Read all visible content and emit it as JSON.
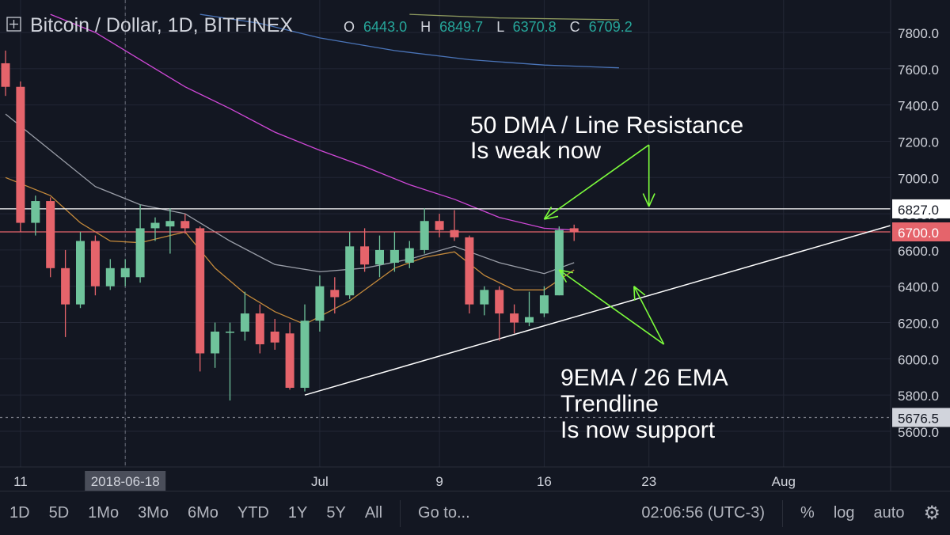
{
  "header": {
    "title": "Bitcoin / Dollar, 1D, BITFINEX",
    "ohlc": [
      {
        "label": "O",
        "value": "6443.0"
      },
      {
        "label": "H",
        "value": "6849.7"
      },
      {
        "label": "L",
        "value": "6370.8"
      },
      {
        "label": "C",
        "value": "6709.2"
      }
    ]
  },
  "annotations": {
    "resistance_line1": "50 DMA / Line Resistance",
    "resistance_line2": "Is weak now",
    "support_line1": "9EMA / 26 EMA",
    "support_line2": "Trendline",
    "support_line3": "Is now support"
  },
  "price_tags": {
    "horizontal_line": "6827.0",
    "last_price": "6700.0",
    "low_line": "5676.5"
  },
  "toolbar": {
    "ranges": [
      "1D",
      "5D",
      "1Mo",
      "3Mo",
      "6Mo",
      "YTD",
      "1Y",
      "5Y",
      "All"
    ],
    "goto": "Go to...",
    "time": "02:06:56 (UTC-3)",
    "percent": "%",
    "log": "log",
    "auto": "auto"
  },
  "colors": {
    "up": "#6fc39b",
    "down": "#e5646b",
    "ema_fast": "#c58a3b",
    "ma_white": "#9a9ea8",
    "ma_50": "#d048d8",
    "annotation_arrows": "#7cfc3c"
  },
  "chart_data": {
    "type": "candlestick",
    "y_axis": {
      "range": [
        5450,
        7900
      ],
      "ticks": [
        "7800.0",
        "7600.0",
        "7400.0",
        "7200.0",
        "7000.0",
        "6800.0",
        "6600.0",
        "6400.0",
        "6200.0",
        "6000.0",
        "5800.0",
        "5600.0"
      ]
    },
    "x_axis": {
      "range": [
        "2018-06-10",
        "2018-08-12"
      ],
      "ticks": [
        {
          "date": "2018-06-11",
          "label": "11"
        },
        {
          "date": "2018-06-18",
          "label": "2018-06-18",
          "highlighted": true
        },
        {
          "date": "2018-07-01",
          "label": "Jul"
        },
        {
          "date": "2018-07-09",
          "label": "9"
        },
        {
          "date": "2018-07-16",
          "label": "16"
        },
        {
          "date": "2018-07-23",
          "label": "23"
        },
        {
          "date": "2018-08-01",
          "label": "Aug"
        }
      ]
    },
    "candles": [
      {
        "date": "2018-06-10",
        "open": 7630,
        "high": 7700,
        "low": 7450,
        "close": 7500
      },
      {
        "date": "2018-06-11",
        "open": 7500,
        "high": 7530,
        "low": 6700,
        "close": 6750
      },
      {
        "date": "2018-06-12",
        "open": 6750,
        "high": 6900,
        "low": 6680,
        "close": 6870
      },
      {
        "date": "2018-06-13",
        "open": 6870,
        "high": 6890,
        "low": 6450,
        "close": 6500
      },
      {
        "date": "2018-06-14",
        "open": 6500,
        "high": 6600,
        "low": 6120,
        "close": 6300
      },
      {
        "date": "2018-06-15",
        "open": 6300,
        "high": 6700,
        "low": 6280,
        "close": 6650
      },
      {
        "date": "2018-06-16",
        "open": 6650,
        "high": 6680,
        "low": 6350,
        "close": 6400
      },
      {
        "date": "2018-06-17",
        "open": 6400,
        "high": 6550,
        "low": 6380,
        "close": 6500
      },
      {
        "date": "2018-06-18",
        "open": 6450,
        "high": 6550,
        "low": 6400,
        "close": 6500
      },
      {
        "date": "2018-06-19",
        "open": 6450,
        "high": 6850,
        "low": 6420,
        "close": 6720
      },
      {
        "date": "2018-06-20",
        "open": 6720,
        "high": 6780,
        "low": 6650,
        "close": 6750
      },
      {
        "date": "2018-06-21",
        "open": 6730,
        "high": 6830,
        "low": 6580,
        "close": 6760
      },
      {
        "date": "2018-06-22",
        "open": 6760,
        "high": 6800,
        "low": 6690,
        "close": 6720
      },
      {
        "date": "2018-06-23",
        "open": 6720,
        "high": 6730,
        "low": 5930,
        "close": 6030
      },
      {
        "date": "2018-06-24",
        "open": 6030,
        "high": 6200,
        "low": 5950,
        "close": 6150
      },
      {
        "date": "2018-06-25",
        "open": 6150,
        "high": 6200,
        "low": 5770,
        "close": 6150
      },
      {
        "date": "2018-06-26",
        "open": 6150,
        "high": 6370,
        "low": 6100,
        "close": 6250
      },
      {
        "date": "2018-06-27",
        "open": 6250,
        "high": 6300,
        "low": 6030,
        "close": 6080
      },
      {
        "date": "2018-06-28",
        "open": 6150,
        "high": 6220,
        "low": 6050,
        "close": 6090
      },
      {
        "date": "2018-06-29",
        "open": 6140,
        "high": 6200,
        "low": 5830,
        "close": 5840
      },
      {
        "date": "2018-06-30",
        "open": 5840,
        "high": 6300,
        "low": 5820,
        "close": 6210
      },
      {
        "date": "2018-07-01",
        "open": 6210,
        "high": 6460,
        "low": 6150,
        "close": 6400
      },
      {
        "date": "2018-07-02",
        "open": 6380,
        "high": 6450,
        "low": 6250,
        "close": 6340
      },
      {
        "date": "2018-07-03",
        "open": 6350,
        "high": 6700,
        "low": 6330,
        "close": 6620
      },
      {
        "date": "2018-07-04",
        "open": 6620,
        "high": 6720,
        "low": 6480,
        "close": 6520
      },
      {
        "date": "2018-07-05",
        "open": 6520,
        "high": 6680,
        "low": 6450,
        "close": 6600
      },
      {
        "date": "2018-07-06",
        "open": 6530,
        "high": 6700,
        "low": 6480,
        "close": 6600
      },
      {
        "date": "2018-07-07",
        "open": 6530,
        "high": 6650,
        "low": 6500,
        "close": 6610
      },
      {
        "date": "2018-07-08",
        "open": 6600,
        "high": 6830,
        "low": 6580,
        "close": 6760
      },
      {
        "date": "2018-07-09",
        "open": 6760,
        "high": 6800,
        "low": 6670,
        "close": 6710
      },
      {
        "date": "2018-07-10",
        "open": 6710,
        "high": 6820,
        "low": 6650,
        "close": 6670
      },
      {
        "date": "2018-07-11",
        "open": 6670,
        "high": 6680,
        "low": 6250,
        "close": 6300
      },
      {
        "date": "2018-07-12",
        "open": 6300,
        "high": 6400,
        "low": 6240,
        "close": 6380
      },
      {
        "date": "2018-07-13",
        "open": 6380,
        "high": 6400,
        "low": 6100,
        "close": 6250
      },
      {
        "date": "2018-07-14",
        "open": 6250,
        "high": 6300,
        "low": 6140,
        "close": 6200
      },
      {
        "date": "2018-07-15",
        "open": 6200,
        "high": 6370,
        "low": 6180,
        "close": 6230
      },
      {
        "date": "2018-07-16",
        "open": 6250,
        "high": 6400,
        "low": 6230,
        "close": 6350
      },
      {
        "date": "2018-07-17",
        "open": 6350,
        "high": 6730,
        "low": 6350,
        "close": 6710
      },
      {
        "date": "2018-07-18",
        "open": 6720,
        "high": 6740,
        "low": 6650,
        "close": 6700
      }
    ],
    "moving_averages": [
      {
        "color": "#c58a3b",
        "points": [
          [
            "2018-06-10",
            7000
          ],
          [
            "2018-06-13",
            6900
          ],
          [
            "2018-06-15",
            6750
          ],
          [
            "2018-06-17",
            6650
          ],
          [
            "2018-06-19",
            6640
          ],
          [
            "2018-06-22",
            6700
          ],
          [
            "2018-06-24",
            6500
          ],
          [
            "2018-06-26",
            6360
          ],
          [
            "2018-06-28",
            6260
          ],
          [
            "2018-06-30",
            6190
          ],
          [
            "2018-07-03",
            6320
          ],
          [
            "2018-07-06",
            6500
          ],
          [
            "2018-07-08",
            6560
          ],
          [
            "2018-07-10",
            6590
          ],
          [
            "2018-07-12",
            6460
          ],
          [
            "2018-07-14",
            6380
          ],
          [
            "2018-07-16",
            6380
          ],
          [
            "2018-07-18",
            6490
          ]
        ]
      },
      {
        "color": "#9a9ea8",
        "points": [
          [
            "2018-06-10",
            7350
          ],
          [
            "2018-06-13",
            7150
          ],
          [
            "2018-06-16",
            6950
          ],
          [
            "2018-06-19",
            6850
          ],
          [
            "2018-06-22",
            6800
          ],
          [
            "2018-06-25",
            6650
          ],
          [
            "2018-06-28",
            6520
          ],
          [
            "2018-07-01",
            6480
          ],
          [
            "2018-07-04",
            6500
          ],
          [
            "2018-07-07",
            6550
          ],
          [
            "2018-07-10",
            6620
          ],
          [
            "2018-07-13",
            6530
          ],
          [
            "2018-07-16",
            6470
          ],
          [
            "2018-07-18",
            6530
          ]
        ]
      },
      {
        "color": "#d048d8",
        "points": [
          [
            "2018-06-13",
            7900
          ],
          [
            "2018-06-16",
            7800
          ],
          [
            "2018-06-19",
            7650
          ],
          [
            "2018-06-22",
            7500
          ],
          [
            "2018-06-25",
            7380
          ],
          [
            "2018-06-28",
            7250
          ],
          [
            "2018-07-01",
            7150
          ],
          [
            "2018-07-04",
            7060
          ],
          [
            "2018-07-07",
            6960
          ],
          [
            "2018-07-10",
            6880
          ],
          [
            "2018-07-13",
            6780
          ],
          [
            "2018-07-16",
            6720
          ],
          [
            "2018-07-18",
            6710
          ]
        ]
      },
      {
        "color": "#4a74b8",
        "points": [
          [
            "2018-06-23",
            7900
          ],
          [
            "2018-06-27",
            7850
          ],
          [
            "2018-07-01",
            7770
          ],
          [
            "2018-07-06",
            7700
          ],
          [
            "2018-07-11",
            7650
          ],
          [
            "2018-07-16",
            7620
          ],
          [
            "2018-07-21",
            7605
          ]
        ]
      },
      {
        "color": "#8e9a5f",
        "points": [
          [
            "2018-07-07",
            7900
          ],
          [
            "2018-07-13",
            7880
          ],
          [
            "2018-07-21",
            7870
          ]
        ]
      }
    ],
    "lines": [
      {
        "type": "horizontal",
        "value": 6827.0,
        "color": "#ffffff"
      },
      {
        "type": "horizontal",
        "value": 6700.0,
        "color": "#e5646b"
      },
      {
        "type": "horizontal",
        "value": 5676.5,
        "color": "#787b86",
        "dashed": true
      },
      {
        "type": "trendline",
        "from": [
          "2018-06-30",
          5800
        ],
        "to": [
          "2018-08-12",
          6827
        ],
        "color": "#ffffff"
      }
    ],
    "arrows": [
      {
        "from": [
          "2018-07-23",
          7180
        ],
        "to": [
          "2018-07-16",
          6770
        ]
      },
      {
        "from": [
          "2018-07-23",
          7180
        ],
        "to": [
          "2018-07-23",
          6840
        ]
      },
      {
        "from": [
          "2018-07-24",
          6080
        ],
        "to": [
          "2018-07-17",
          6490
        ]
      },
      {
        "from": [
          "2018-07-24",
          6080
        ],
        "to": [
          "2018-07-22",
          6400
        ]
      }
    ]
  }
}
